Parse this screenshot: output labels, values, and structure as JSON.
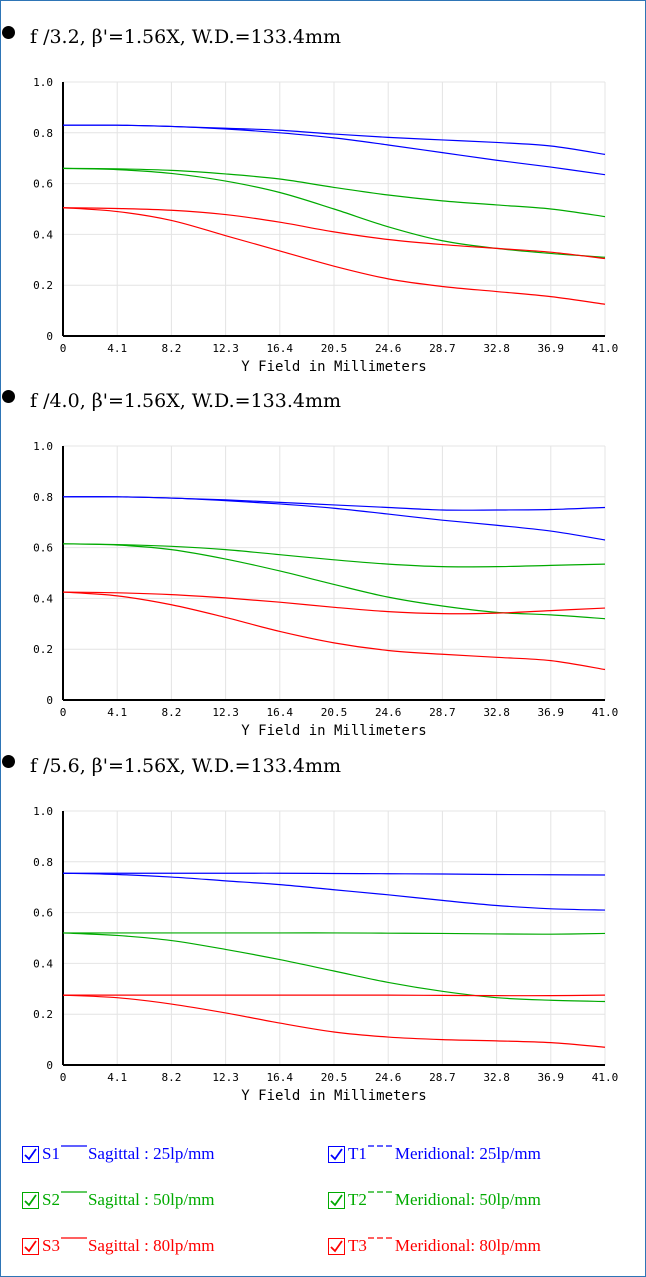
{
  "colors": {
    "s25": "#0000ff",
    "s50": "#00aa00",
    "s80": "#ff0000",
    "frame": "#2e75b6"
  },
  "headings": [
    "f /3.2,   β'=1.56X,  W.D.=133.4mm",
    "f /4.0,   β'=1.56X,  W.D.=133.4mm",
    "f /5.6,   β'=1.56X,  W.D.=133.4mm"
  ],
  "chart_data": [
    {
      "type": "line",
      "xlabel": "Y Field in Millimeters",
      "x_ticks": [
        "0",
        "4.1",
        "8.2",
        "12.3",
        "16.4",
        "20.5",
        "24.6",
        "28.7",
        "32.8",
        "36.9",
        "41.0"
      ],
      "y_ticks": [
        "0",
        "0.2",
        "0.4",
        "0.6",
        "0.8",
        "1.0"
      ],
      "xlim": [
        0,
        41.0
      ],
      "ylim": [
        0,
        1.0
      ],
      "grid": true,
      "x": [
        0,
        4.1,
        8.2,
        12.3,
        16.4,
        20.5,
        24.6,
        28.7,
        32.8,
        36.9,
        41.0
      ],
      "series": [
        {
          "name": "S1",
          "color": "#0000ff",
          "values": [
            0.83,
            0.83,
            0.825,
            0.818,
            0.81,
            0.795,
            0.782,
            0.772,
            0.762,
            0.748,
            0.715
          ]
        },
        {
          "name": "T1",
          "color": "#0000ff",
          "values": [
            0.83,
            0.83,
            0.825,
            0.815,
            0.8,
            0.78,
            0.752,
            0.722,
            0.692,
            0.665,
            0.635
          ]
        },
        {
          "name": "S2",
          "color": "#00aa00",
          "values": [
            0.66,
            0.658,
            0.652,
            0.638,
            0.618,
            0.585,
            0.555,
            0.532,
            0.516,
            0.5,
            0.47
          ]
        },
        {
          "name": "T2",
          "color": "#00aa00",
          "values": [
            0.66,
            0.655,
            0.64,
            0.61,
            0.565,
            0.5,
            0.43,
            0.375,
            0.345,
            0.325,
            0.31
          ]
        },
        {
          "name": "S3",
          "color": "#ff0000",
          "values": [
            0.505,
            0.502,
            0.495,
            0.478,
            0.448,
            0.41,
            0.38,
            0.36,
            0.345,
            0.33,
            0.305
          ]
        },
        {
          "name": "T3",
          "color": "#ff0000",
          "values": [
            0.505,
            0.49,
            0.455,
            0.395,
            0.335,
            0.275,
            0.225,
            0.195,
            0.175,
            0.155,
            0.125
          ]
        }
      ]
    },
    {
      "type": "line",
      "xlabel": "Y Field in Millimeters",
      "x_ticks": [
        "0",
        "4.1",
        "8.2",
        "12.3",
        "16.4",
        "20.5",
        "24.6",
        "28.7",
        "32.8",
        "36.9",
        "41.0"
      ],
      "y_ticks": [
        "0",
        "0.2",
        "0.4",
        "0.6",
        "0.8",
        "1.0"
      ],
      "xlim": [
        0,
        41.0
      ],
      "ylim": [
        0,
        1.0
      ],
      "grid": true,
      "x": [
        0,
        4.1,
        8.2,
        12.3,
        16.4,
        20.5,
        24.6,
        28.7,
        32.8,
        36.9,
        41.0
      ],
      "series": [
        {
          "name": "S1",
          "color": "#0000ff",
          "values": [
            0.8,
            0.8,
            0.795,
            0.788,
            0.778,
            0.768,
            0.758,
            0.748,
            0.748,
            0.75,
            0.758
          ]
        },
        {
          "name": "T1",
          "color": "#0000ff",
          "values": [
            0.8,
            0.8,
            0.795,
            0.785,
            0.772,
            0.755,
            0.732,
            0.708,
            0.688,
            0.665,
            0.63
          ]
        },
        {
          "name": "S2",
          "color": "#00aa00",
          "values": [
            0.615,
            0.612,
            0.605,
            0.592,
            0.572,
            0.552,
            0.535,
            0.525,
            0.525,
            0.53,
            0.535
          ]
        },
        {
          "name": "T2",
          "color": "#00aa00",
          "values": [
            0.615,
            0.61,
            0.592,
            0.555,
            0.508,
            0.455,
            0.405,
            0.37,
            0.345,
            0.335,
            0.32
          ]
        },
        {
          "name": "S3",
          "color": "#ff0000",
          "values": [
            0.425,
            0.422,
            0.415,
            0.402,
            0.385,
            0.365,
            0.348,
            0.34,
            0.342,
            0.352,
            0.362
          ]
        },
        {
          "name": "T3",
          "color": "#ff0000",
          "values": [
            0.425,
            0.41,
            0.375,
            0.325,
            0.27,
            0.225,
            0.195,
            0.18,
            0.168,
            0.155,
            0.12
          ]
        }
      ]
    },
    {
      "type": "line",
      "xlabel": "Y Field in Millimeters",
      "x_ticks": [
        "0",
        "4.1",
        "8.2",
        "12.3",
        "16.4",
        "20.5",
        "24.6",
        "28.7",
        "32.8",
        "36.9",
        "41.0"
      ],
      "y_ticks": [
        "0",
        "0.2",
        "0.4",
        "0.6",
        "0.8",
        "1.0"
      ],
      "xlim": [
        0,
        41.0
      ],
      "ylim": [
        0,
        1.0
      ],
      "grid": true,
      "x": [
        0,
        4.1,
        8.2,
        12.3,
        16.4,
        20.5,
        24.6,
        28.7,
        32.8,
        36.9,
        41.0
      ],
      "series": [
        {
          "name": "S1",
          "color": "#0000ff",
          "values": [
            0.755,
            0.755,
            0.755,
            0.755,
            0.755,
            0.754,
            0.753,
            0.752,
            0.75,
            0.749,
            0.748
          ]
        },
        {
          "name": "T1",
          "color": "#0000ff",
          "values": [
            0.755,
            0.75,
            0.74,
            0.725,
            0.71,
            0.69,
            0.67,
            0.648,
            0.628,
            0.615,
            0.61
          ]
        },
        {
          "name": "S2",
          "color": "#00aa00",
          "values": [
            0.52,
            0.52,
            0.52,
            0.52,
            0.52,
            0.52,
            0.519,
            0.518,
            0.516,
            0.515,
            0.518
          ]
        },
        {
          "name": "T2",
          "color": "#00aa00",
          "values": [
            0.52,
            0.51,
            0.49,
            0.455,
            0.415,
            0.37,
            0.325,
            0.29,
            0.265,
            0.255,
            0.25
          ]
        },
        {
          "name": "S3",
          "color": "#ff0000",
          "values": [
            0.275,
            0.275,
            0.275,
            0.275,
            0.275,
            0.275,
            0.275,
            0.274,
            0.273,
            0.273,
            0.275
          ]
        },
        {
          "name": "T3",
          "color": "#ff0000",
          "values": [
            0.275,
            0.265,
            0.24,
            0.205,
            0.165,
            0.13,
            0.11,
            0.1,
            0.095,
            0.088,
            0.07
          ]
        }
      ]
    }
  ],
  "legend": [
    {
      "code": "S1",
      "label": "Sagittal : 25lp/mm",
      "color": "#0000ff",
      "line": "solid"
    },
    {
      "code": "T1",
      "label": "Meridional: 25lp/mm",
      "color": "#0000ff",
      "line": "dashed"
    },
    {
      "code": "S2",
      "label": "Sagittal : 50lp/mm",
      "color": "#00aa00",
      "line": "solid"
    },
    {
      "code": "T2",
      "label": "Meridional: 50lp/mm",
      "color": "#00aa00",
      "line": "dashed"
    },
    {
      "code": "S3",
      "label": "Sagittal : 80lp/mm",
      "color": "#ff0000",
      "line": "solid"
    },
    {
      "code": "T3",
      "label": "Meridional: 80lp/mm",
      "color": "#ff0000",
      "line": "dashed"
    }
  ]
}
